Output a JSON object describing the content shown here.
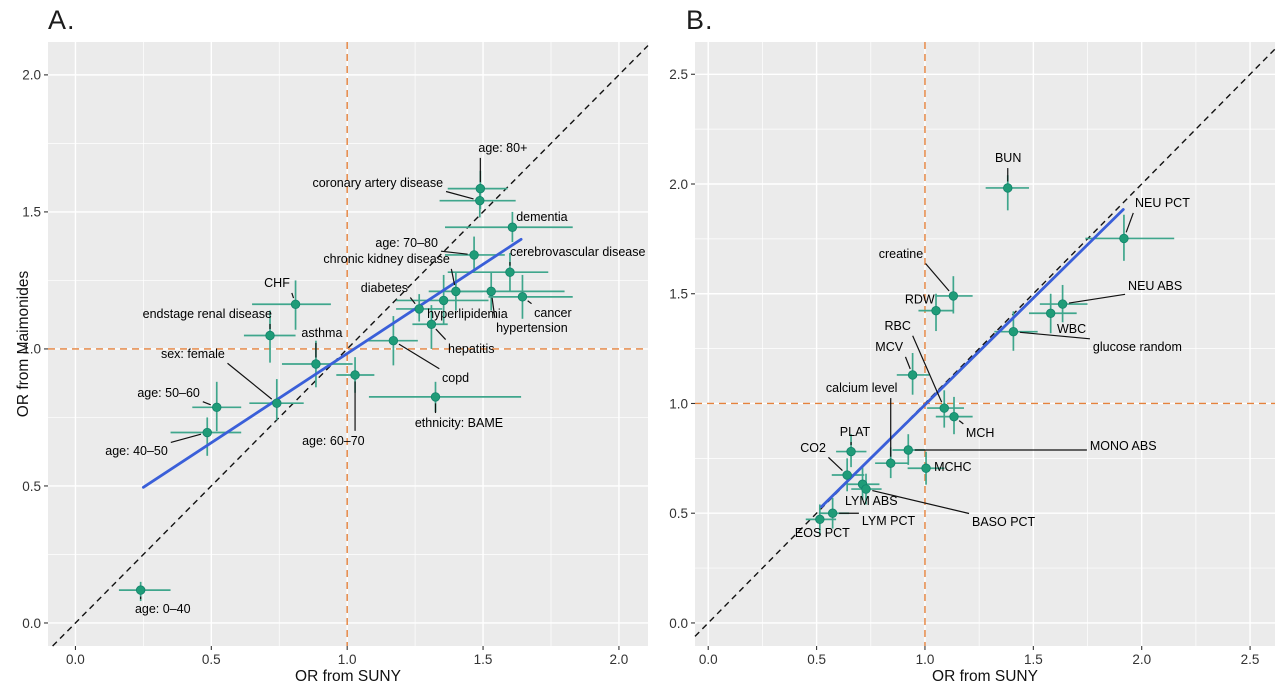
{
  "figure": {
    "panel_a_title": "A.",
    "panel_b_title": "B.",
    "x_axis_title_a": "OR from SUNY",
    "x_axis_title_b": "OR from SUNY",
    "y_axis_title": "OR from Maimonides"
  },
  "colors": {
    "background": "#ffffff",
    "panel_bg": "#ebebeb",
    "grid": "#ffffff",
    "point": "#1f9c78",
    "point_stroke": "#12826b",
    "error_bar": "#3fa68c",
    "fit_line": "#3a5fd9",
    "identity_line": "#111111",
    "ref_line": "#e5823c",
    "label_text": "#000000",
    "tick_text": "#333333",
    "leader": "#111111"
  },
  "chart_data": [
    {
      "id": "A",
      "type": "scatter",
      "panel_label": "A.",
      "xlabel": "OR from SUNY",
      "ylabel": "OR from Maimonides",
      "xlim": [
        -0.101,
        2.107
      ],
      "ylim": [
        -0.084,
        2.12
      ],
      "xticks": [
        0,
        0.5,
        1,
        1.5,
        2
      ],
      "yticks": [
        0,
        0.5,
        1,
        1.5,
        2
      ],
      "grid": true,
      "ref_x": 1,
      "ref_y": 1,
      "identity_line": true,
      "fit_line": [
        [
          0.25,
          0.495
        ],
        [
          1.64,
          1.4
        ]
      ],
      "points": [
        {
          "label": "age: 0–40",
          "x": 0.24,
          "y": 0.12,
          "xe": [
            0.16,
            0.35
          ],
          "ye": [
            0.08,
            0.15
          ],
          "tx": 0.219,
          "ty": 0.036,
          "ta": "start"
        },
        {
          "label": "age: 40–50",
          "x": 0.485,
          "y": 0.695,
          "xe": [
            0.35,
            0.61
          ],
          "ye": [
            0.61,
            0.75
          ],
          "tx": 0.34,
          "ty": 0.613,
          "ta": "end"
        },
        {
          "label": "age: 50–60",
          "x": 0.52,
          "y": 0.787,
          "xe": [
            0.43,
            0.61
          ],
          "ye": [
            0.7,
            0.88
          ],
          "tx": 0.458,
          "ty": 0.825,
          "ta": "end"
        },
        {
          "label": "sex: female",
          "x": 0.741,
          "y": 0.802,
          "xe": [
            0.64,
            0.84
          ],
          "ye": [
            0.74,
            0.89
          ],
          "tx": 0.55,
          "ty": 0.967,
          "ta": "end"
        },
        {
          "label": "age: 60–70",
          "x": 1.029,
          "y": 0.905,
          "xe": [
            0.96,
            1.1
          ],
          "ye": [
            0.84,
            0.97
          ],
          "tx": 0.834,
          "ty": 0.65,
          "ta": "start"
        },
        {
          "label": "asthma",
          "x": 0.885,
          "y": 0.945,
          "xe": [
            0.76,
            1.02
          ],
          "ye": [
            0.86,
            1.03
          ],
          "tx": 0.907,
          "ty": 1.044,
          "ta": "middle"
        },
        {
          "label": "endstage renal disease",
          "x": 0.716,
          "y": 1.049,
          "xe": [
            0.62,
            0.81
          ],
          "ye": [
            0.95,
            1.14
          ],
          "tx": 0.723,
          "ty": 1.113,
          "ta": "end"
        },
        {
          "label": "CHF",
          "x": 0.81,
          "y": 1.163,
          "xe": [
            0.65,
            0.94
          ],
          "ye": [
            1.07,
            1.25
          ],
          "tx": 0.789,
          "ty": 1.226,
          "ta": "end"
        },
        {
          "label": "ethnicity: BAME",
          "x": 1.325,
          "y": 0.825,
          "xe": [
            1.08,
            1.64
          ],
          "ye": [
            0.77,
            0.88
          ],
          "tx": 1.249,
          "ty": 0.715,
          "ta": "start"
        },
        {
          "label": "copd",
          "x": 1.17,
          "y": 1.03,
          "xe": [
            1.07,
            1.26
          ],
          "ye": [
            0.94,
            1.12
          ],
          "tx": 1.349,
          "ty": 0.88,
          "ta": "start"
        },
        {
          "label": "hepatitis",
          "x": 1.31,
          "y": 1.09,
          "xe": [
            1.24,
            1.37
          ],
          "ye": [
            1.0,
            1.16
          ],
          "tx": 1.371,
          "ty": 0.985,
          "ta": "start"
        },
        {
          "label": "diabetes",
          "x": 1.265,
          "y": 1.146,
          "xe": [
            1.18,
            1.35
          ],
          "ye": [
            1.1,
            1.2
          ],
          "tx": 1.224,
          "ty": 1.208,
          "ta": "end"
        },
        {
          "label": "hyperlipidemia",
          "x": 1.355,
          "y": 1.177,
          "xe": [
            1.18,
            1.52
          ],
          "ye": [
            1.09,
            1.27
          ],
          "tx": 1.294,
          "ty": 1.113,
          "ta": "start"
        },
        {
          "label": "chronic kidney disease",
          "x": 1.4,
          "y": 1.21,
          "xe": [
            1.3,
            1.5
          ],
          "ye": [
            1.14,
            1.28
          ],
          "tx": 1.378,
          "ty": 1.314,
          "ta": "end"
        },
        {
          "label": "hypertension",
          "x": 1.53,
          "y": 1.21,
          "xe": [
            1.4,
            1.8
          ],
          "ye": [
            1.14,
            1.28
          ],
          "tx": 1.548,
          "ty": 1.062,
          "ta": "start"
        },
        {
          "label": "cancer",
          "x": 1.645,
          "y": 1.19,
          "xe": [
            1.52,
            1.83
          ],
          "ye": [
            1.11,
            1.27
          ],
          "tx": 1.688,
          "ty": 1.117,
          "ta": "start"
        },
        {
          "label": "cerebrovascular disease",
          "x": 1.599,
          "y": 1.28,
          "xe": [
            1.37,
            1.74
          ],
          "ye": [
            1.21,
            1.35
          ],
          "tx": 1.599,
          "ty": 1.339,
          "ta": "start"
        },
        {
          "label": "age: 70–80",
          "x": 1.467,
          "y": 1.343,
          "xe": [
            1.36,
            1.58
          ],
          "ye": [
            1.28,
            1.41
          ],
          "tx": 1.334,
          "ty": 1.372,
          "ta": "end"
        },
        {
          "label": "dementia",
          "x": 1.608,
          "y": 1.444,
          "xe": [
            1.36,
            1.83
          ],
          "ye": [
            1.39,
            1.5
          ],
          "tx": 1.622,
          "ty": 1.467,
          "ta": "start"
        },
        {
          "label": "coronary artery disease",
          "x": 1.488,
          "y": 1.541,
          "xe": [
            1.34,
            1.62
          ],
          "ye": [
            1.48,
            1.6
          ],
          "tx": 1.353,
          "ty": 1.591,
          "ta": "end"
        },
        {
          "label": "age: 80+",
          "x": 1.49,
          "y": 1.585,
          "xe": [
            1.37,
            1.59
          ],
          "ye": [
            1.51,
            1.65
          ],
          "tx": 1.573,
          "ty": 1.719,
          "ta": "middle"
        }
      ]
    },
    {
      "id": "B",
      "type": "scatter",
      "panel_label": "B.",
      "xlabel": "OR from SUNY",
      "ylabel": "",
      "xlim": [
        -0.061,
        2.615
      ],
      "ylim": [
        -0.105,
        2.647
      ],
      "xticks": [
        0,
        0.5,
        1,
        1.5,
        2,
        2.5
      ],
      "yticks": [
        0,
        0.5,
        1,
        1.5,
        2,
        2.5
      ],
      "grid": true,
      "ref_x": 1,
      "ref_y": 1,
      "identity_line": true,
      "fit_line": [
        [
          0.523,
          0.53
        ],
        [
          1.915,
          1.884
        ]
      ],
      "points": [
        {
          "label": "EOS PCT",
          "x": 0.515,
          "y": 0.472,
          "xe": [
            0.45,
            0.59
          ],
          "ye": [
            0.4,
            0.54
          ],
          "tx": 0.4,
          "ty": 0.392,
          "ta": "start"
        },
        {
          "label": "LYM PCT",
          "x": 0.574,
          "y": 0.5,
          "xe": [
            0.51,
            0.65
          ],
          "ye": [
            0.43,
            0.57
          ],
          "tx": 0.709,
          "ty": 0.446,
          "ta": "start"
        },
        {
          "label": "LYM ABS",
          "x": 0.712,
          "y": 0.632,
          "xe": [
            0.64,
            0.79
          ],
          "ye": [
            0.56,
            0.71
          ],
          "tx": 0.631,
          "ty": 0.538,
          "ta": "start"
        },
        {
          "label": "BASO PCT",
          "x": 0.728,
          "y": 0.61,
          "xe": [
            0.66,
            0.8
          ],
          "ye": [
            0.54,
            0.68
          ],
          "tx": 1.217,
          "ty": 0.442,
          "ta": "start"
        },
        {
          "label": "CO2",
          "x": 0.641,
          "y": 0.674,
          "xe": [
            0.57,
            0.72
          ],
          "ye": [
            0.6,
            0.75
          ],
          "tx": 0.543,
          "ty": 0.779,
          "ta": "end"
        },
        {
          "label": "PLAT",
          "x": 0.659,
          "y": 0.781,
          "xe": [
            0.59,
            0.73
          ],
          "ye": [
            0.71,
            0.86
          ],
          "tx": 0.677,
          "ty": 0.852,
          "ta": "middle"
        },
        {
          "label": "calcium level",
          "x": 0.842,
          "y": 0.728,
          "xe": [
            0.77,
            0.92
          ],
          "ye": [
            0.66,
            0.8
          ],
          "tx": 0.543,
          "ty": 1.052,
          "ta": "start"
        },
        {
          "label": "MCHC",
          "x": 1.005,
          "y": 0.705,
          "xe": [
            0.92,
            1.09
          ],
          "ye": [
            0.63,
            0.78
          ],
          "tx": 1.042,
          "ty": 0.692,
          "ta": "start"
        },
        {
          "label": "MONO ABS",
          "x": 0.923,
          "y": 0.788,
          "xe": [
            0.85,
            1.0
          ],
          "ye": [
            0.72,
            0.86
          ],
          "tx": 1.761,
          "ty": 0.788,
          "ta": "start"
        },
        {
          "label": "MCH",
          "x": 1.134,
          "y": 0.94,
          "xe": [
            1.05,
            1.22
          ],
          "ye": [
            0.86,
            1.03
          ],
          "tx": 1.189,
          "ty": 0.847,
          "ta": "start"
        },
        {
          "label": "RBC",
          "x": 1.089,
          "y": 0.979,
          "xe": [
            1.01,
            1.18
          ],
          "ye": [
            0.89,
            1.06
          ],
          "tx": 0.935,
          "ty": 1.335,
          "ta": "end"
        },
        {
          "label": "MCV",
          "x": 0.943,
          "y": 1.13,
          "xe": [
            0.87,
            1.02
          ],
          "ye": [
            1.04,
            1.23
          ],
          "tx": 0.899,
          "ty": 1.239,
          "ta": "end"
        },
        {
          "label": "glucose random",
          "x": 1.408,
          "y": 1.327,
          "xe": [
            1.32,
            1.52
          ],
          "ye": [
            1.24,
            1.42
          ],
          "tx": 1.775,
          "ty": 1.239,
          "ta": "start"
        },
        {
          "label": "WBC",
          "x": 1.58,
          "y": 1.411,
          "xe": [
            1.48,
            1.7
          ],
          "ye": [
            1.32,
            1.5
          ],
          "tx": 1.609,
          "ty": 1.321,
          "ta": "start"
        },
        {
          "label": "NEU ABS",
          "x": 1.635,
          "y": 1.453,
          "xe": [
            1.53,
            1.75
          ],
          "ye": [
            1.37,
            1.54
          ],
          "tx": 1.937,
          "ty": 1.517,
          "ta": "start"
        },
        {
          "label": "RDW",
          "x": 1.051,
          "y": 1.423,
          "xe": [
            0.97,
            1.13
          ],
          "ye": [
            1.33,
            1.5
          ],
          "tx": 1.045,
          "ty": 1.455,
          "ta": "end"
        },
        {
          "label": "creatine",
          "x": 1.131,
          "y": 1.49,
          "xe": [
            1.05,
            1.22
          ],
          "ye": [
            1.41,
            1.58
          ],
          "tx": 0.992,
          "ty": 1.663,
          "ta": "end"
        },
        {
          "label": "NEU PCT",
          "x": 1.918,
          "y": 1.752,
          "xe": [
            1.74,
            2.15
          ],
          "ye": [
            1.65,
            1.86
          ],
          "tx": 1.969,
          "ty": 1.895,
          "ta": "start"
        },
        {
          "label": "BUN",
          "x": 1.382,
          "y": 1.982,
          "xe": [
            1.28,
            1.48
          ],
          "ye": [
            1.88,
            2.04
          ],
          "tx": 1.323,
          "ty": 2.1,
          "ta": "start"
        }
      ]
    }
  ]
}
